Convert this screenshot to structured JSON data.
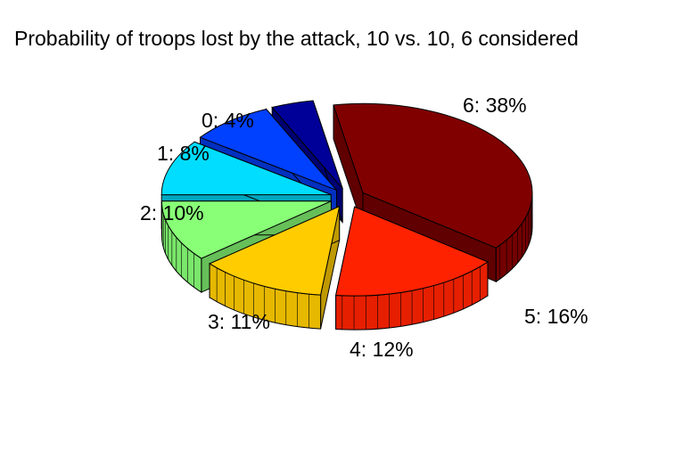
{
  "chart_data": {
    "type": "pie",
    "title": "Probability of troops lost by the attack, 10 vs. 10, 6 considered",
    "three_d": true,
    "exploded": true,
    "slices": [
      {
        "label": "0: 4%",
        "category": "0",
        "value": 4,
        "color": "#000099"
      },
      {
        "label": "1: 8%",
        "category": "1",
        "value": 8,
        "color": "#0040FF"
      },
      {
        "label": "2: 10%",
        "category": "2",
        "value": 10,
        "color": "#00DDFF"
      },
      {
        "label": "3: 11%",
        "category": "3",
        "value": 11,
        "color": "#88FF77"
      },
      {
        "label": "4: 12%",
        "category": "4",
        "value": 12,
        "color": "#FFCC00"
      },
      {
        "label": "5: 16%",
        "category": "5",
        "value": 16,
        "color": "#FF2200"
      },
      {
        "label": "6: 38%",
        "category": "6",
        "value": 38,
        "color": "#800000"
      }
    ]
  }
}
